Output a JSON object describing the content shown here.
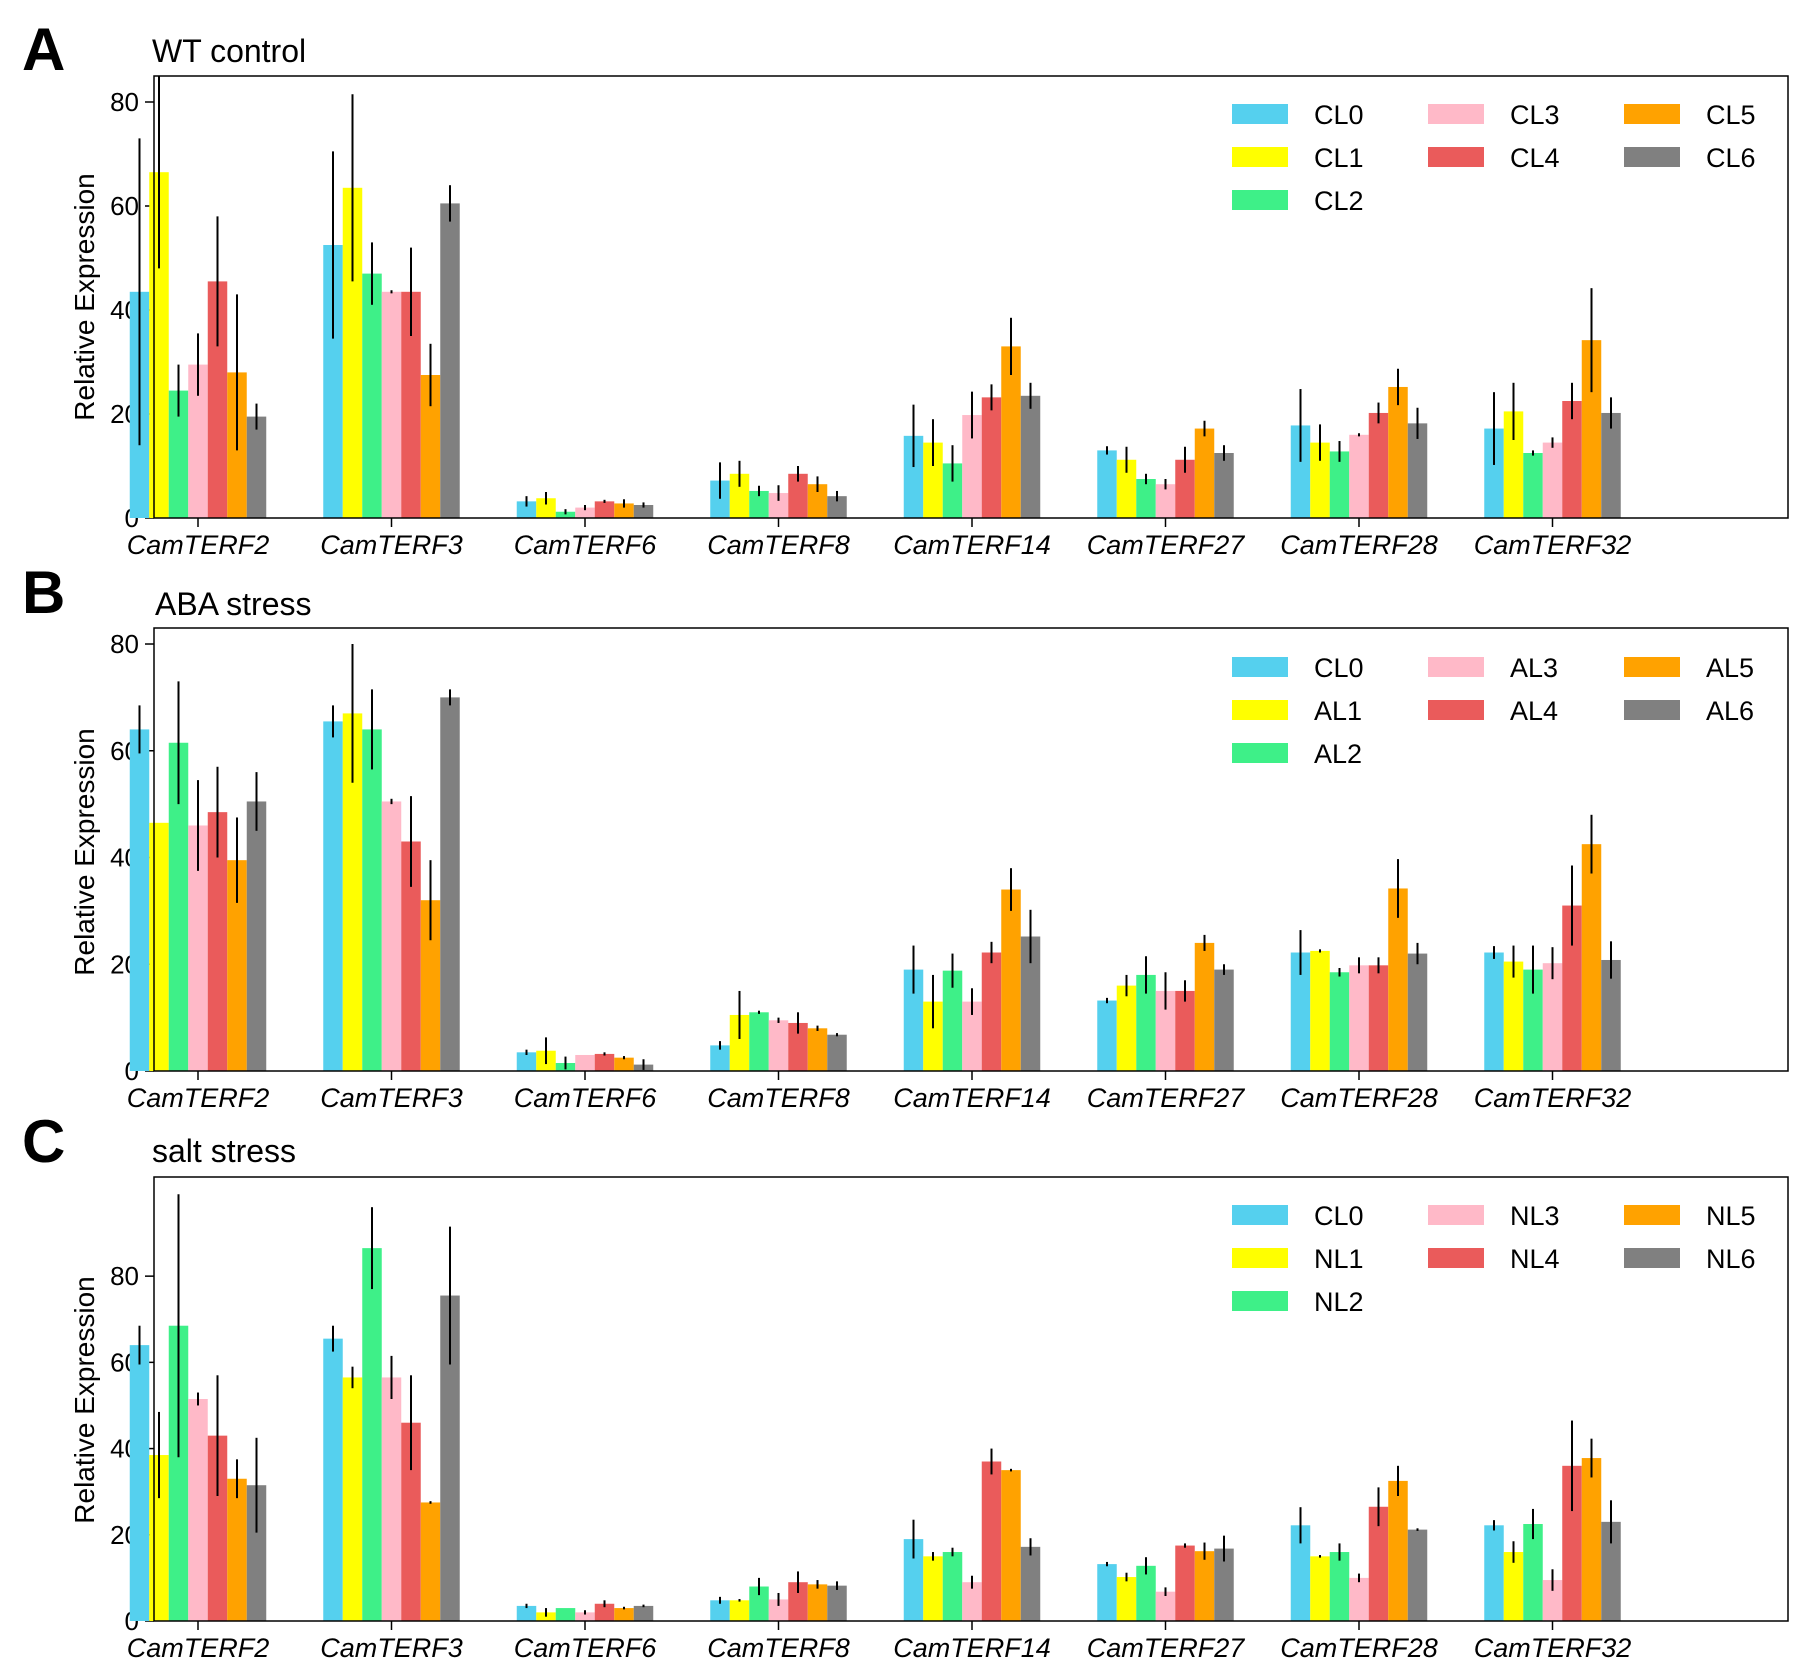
{
  "chart_data": [
    {
      "type": "bar",
      "panel": "A",
      "title": "WT  control",
      "xlabel": "",
      "ylabel": "Relative Expression",
      "ylim": [
        0,
        85
      ],
      "yticks": [
        0,
        20,
        40,
        60,
        80
      ],
      "categories": [
        "CamTERF2",
        "CamTERF3",
        "CamTERF6",
        "CamTERF8",
        "CamTERF14",
        "CamTERF27",
        "CamTERF28",
        "CamTERF32"
      ],
      "series": [
        {
          "name": "CL0",
          "color": "#55d0ee",
          "values": [
            43.5,
            52.5,
            3.2,
            7.2,
            15.8,
            13.0,
            17.8,
            17.2
          ],
          "errors": [
            29.5,
            18.0,
            1.0,
            3.5,
            6.0,
            0.8,
            7.0,
            7.0
          ]
        },
        {
          "name": "CL1",
          "color": "#ffff00",
          "values": [
            66.5,
            63.5,
            3.8,
            8.5,
            14.5,
            11.2,
            14.5,
            20.5
          ],
          "errors": [
            18.5,
            18.0,
            1.2,
            2.5,
            4.5,
            2.5,
            3.5,
            5.5
          ]
        },
        {
          "name": "CL2",
          "color": "#3ef088",
          "values": [
            24.5,
            47.0,
            1.2,
            5.2,
            10.5,
            7.5,
            12.8,
            12.5
          ],
          "errors": [
            5.0,
            6.0,
            0.5,
            1.0,
            3.5,
            1.0,
            2.0,
            0.5
          ]
        },
        {
          "name": "CL3",
          "color": "#ffb9c8",
          "values": [
            29.5,
            43.5,
            2.0,
            4.8,
            19.8,
            6.5,
            16.0,
            14.5
          ],
          "errors": [
            6.0,
            0.3,
            0.5,
            1.5,
            4.5,
            1.0,
            0.3,
            1.0
          ]
        },
        {
          "name": "CL4",
          "color": "#ea5b5b",
          "values": [
            45.5,
            43.5,
            3.2,
            8.5,
            23.2,
            11.2,
            20.2,
            22.5
          ],
          "errors": [
            12.5,
            8.5,
            0.3,
            1.5,
            2.5,
            2.5,
            2.0,
            3.5
          ]
        },
        {
          "name": "CL5",
          "color": "#ffa200",
          "values": [
            28.0,
            27.5,
            2.8,
            6.5,
            33.0,
            17.2,
            25.2,
            34.2
          ],
          "errors": [
            15.0,
            6.0,
            0.8,
            1.5,
            5.5,
            1.5,
            3.5,
            10.0
          ]
        },
        {
          "name": "CL6",
          "color": "#808080",
          "values": [
            19.5,
            60.5,
            2.5,
            4.2,
            23.5,
            12.5,
            18.2,
            20.2
          ],
          "errors": [
            2.5,
            3.5,
            0.5,
            1.0,
            2.5,
            1.5,
            3.0,
            3.0
          ]
        }
      ]
    },
    {
      "type": "bar",
      "panel": "B",
      "title": "ABA  stress",
      "xlabel": "",
      "ylabel": "Relative Expression",
      "ylim": [
        0,
        83
      ],
      "yticks": [
        0,
        20,
        40,
        60,
        80
      ],
      "categories": [
        "CamTERF2",
        "CamTERF3",
        "CamTERF6",
        "CamTERF8",
        "CamTERF14",
        "CamTERF27",
        "CamTERF28",
        "CamTERF32"
      ],
      "series": [
        {
          "name": "CL0",
          "color": "#55d0ee",
          "values": [
            64.0,
            65.5,
            3.5,
            4.8,
            19.0,
            13.2,
            22.2,
            22.2
          ],
          "errors": [
            4.5,
            3.0,
            0.5,
            0.8,
            4.5,
            0.5,
            4.2,
            1.2
          ]
        },
        {
          "name": "AL1",
          "color": "#ffff00",
          "values": [
            46.5,
            67.0,
            3.8,
            10.5,
            13.0,
            16.0,
            22.5,
            20.5
          ],
          "errors": [
            0.0,
            13.0,
            2.5,
            4.5,
            5.0,
            2.0,
            0.3,
            3.0
          ]
        },
        {
          "name": "AL2",
          "color": "#3ef088",
          "values": [
            61.5,
            64.0,
            1.5,
            11.0,
            18.8,
            18.0,
            18.5,
            19.0
          ],
          "errors": [
            11.5,
            7.5,
            1.2,
            0.3,
            3.2,
            3.5,
            0.8,
            4.5
          ]
        },
        {
          "name": "AL3",
          "color": "#ffb9c8",
          "values": [
            46.0,
            50.5,
            3.0,
            9.5,
            13.0,
            15.0,
            19.8,
            20.2
          ],
          "errors": [
            8.5,
            0.5,
            0.0,
            0.5,
            2.5,
            3.5,
            1.5,
            3.0
          ]
        },
        {
          "name": "AL4",
          "color": "#ea5b5b",
          "values": [
            48.5,
            43.0,
            3.2,
            9.0,
            22.2,
            15.0,
            19.8,
            31.0
          ],
          "errors": [
            8.5,
            8.5,
            0.3,
            2.0,
            2.0,
            2.0,
            1.5,
            7.5
          ]
        },
        {
          "name": "AL5",
          "color": "#ffa200",
          "values": [
            39.5,
            32.0,
            2.5,
            8.0,
            34.0,
            24.0,
            34.2,
            42.5
          ],
          "errors": [
            8.0,
            7.5,
            0.3,
            0.5,
            4.0,
            1.5,
            5.5,
            5.5
          ]
        },
        {
          "name": "AL6",
          "color": "#808080",
          "values": [
            50.5,
            70.0,
            1.2,
            6.8,
            25.2,
            19.0,
            22.0,
            20.8
          ],
          "errors": [
            5.5,
            1.5,
            1.0,
            0.3,
            5.0,
            1.0,
            2.0,
            3.5
          ]
        }
      ]
    },
    {
      "type": "bar",
      "panel": "C",
      "title": "salt  stress",
      "xlabel": "",
      "ylabel": "Relative Expression",
      "ylim": [
        0,
        103
      ],
      "yticks": [
        0,
        20,
        40,
        60,
        80
      ],
      "categories": [
        "CamTERF2",
        "CamTERF3",
        "CamTERF6",
        "CamTERF8",
        "CamTERF14",
        "CamTERF27",
        "CamTERF28",
        "CamTERF32"
      ],
      "series": [
        {
          "name": "CL0",
          "color": "#55d0ee",
          "values": [
            64.0,
            65.5,
            3.5,
            4.8,
            19.0,
            13.2,
            22.2,
            22.2
          ],
          "errors": [
            4.5,
            3.0,
            0.5,
            0.8,
            4.5,
            0.5,
            4.2,
            1.2
          ]
        },
        {
          "name": "NL1",
          "color": "#ffff00",
          "values": [
            38.5,
            56.5,
            2.0,
            4.8,
            15.0,
            10.2,
            15.0,
            16.0
          ],
          "errors": [
            10.0,
            2.5,
            1.0,
            0.3,
            1.0,
            1.0,
            0.3,
            2.5
          ]
        },
        {
          "name": "NL2",
          "color": "#3ef088",
          "values": [
            68.5,
            86.5,
            3.0,
            8.0,
            16.0,
            12.8,
            16.0,
            22.5
          ],
          "errors": [
            30.5,
            9.5,
            0.0,
            2.0,
            1.0,
            2.0,
            2.0,
            3.5
          ]
        },
        {
          "name": "NL3",
          "color": "#ffb9c8",
          "values": [
            51.5,
            56.5,
            2.0,
            5.0,
            9.0,
            6.8,
            10.0,
            9.5
          ],
          "errors": [
            1.5,
            5.0,
            0.5,
            1.5,
            1.5,
            1.0,
            1.0,
            2.5
          ]
        },
        {
          "name": "NL4",
          "color": "#ea5b5b",
          "values": [
            43.0,
            46.0,
            4.0,
            9.0,
            37.0,
            17.5,
            26.5,
            36.0
          ],
          "errors": [
            14.0,
            11.0,
            0.8,
            2.5,
            3.0,
            0.5,
            4.5,
            10.5
          ]
        },
        {
          "name": "NL5",
          "color": "#ffa200",
          "values": [
            33.0,
            27.5,
            3.0,
            8.5,
            35.0,
            16.2,
            32.5,
            37.8
          ],
          "errors": [
            4.5,
            0.3,
            0.3,
            1.0,
            0.3,
            2.0,
            3.5,
            4.5
          ]
        },
        {
          "name": "NL6",
          "color": "#808080",
          "values": [
            31.5,
            75.5,
            3.5,
            8.2,
            17.2,
            16.8,
            21.2,
            23.0
          ],
          "errors": [
            11.0,
            16.0,
            0.3,
            1.0,
            2.0,
            3.0,
            0.3,
            5.0
          ]
        }
      ]
    }
  ]
}
